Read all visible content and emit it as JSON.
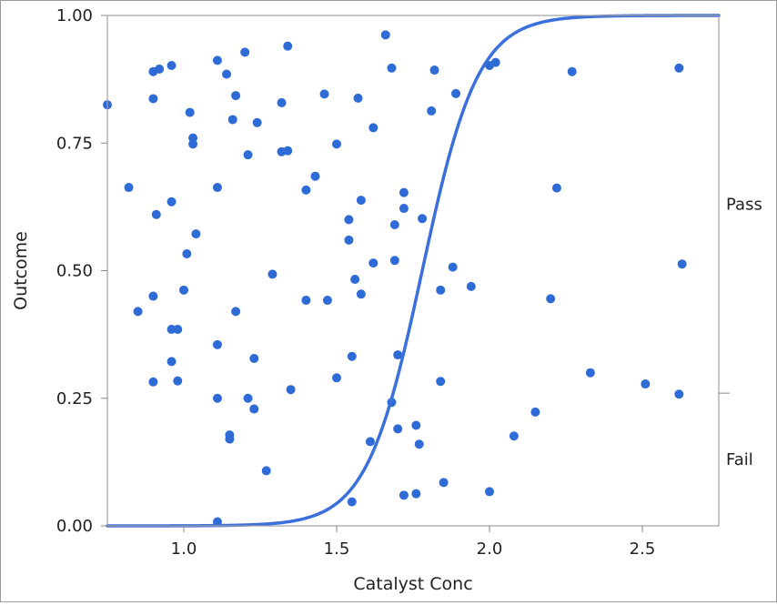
{
  "chart_data": {
    "type": "scatter",
    "title": "",
    "xlabel": "Catalyst Conc",
    "ylabel": "Outcome",
    "xlim": [
      0.75,
      2.75
    ],
    "ylim": [
      0,
      1
    ],
    "x_ticks": [
      {
        "value": 1.0,
        "label": "1.0"
      },
      {
        "value": 1.5,
        "label": "1.5"
      },
      {
        "value": 2.0,
        "label": "2.0"
      },
      {
        "value": 2.5,
        "label": "2.5"
      }
    ],
    "y_ticks": [
      {
        "value": 0.0,
        "label": "0.00"
      },
      {
        "value": 0.25,
        "label": "0.25"
      },
      {
        "value": 0.5,
        "label": "0.50"
      },
      {
        "value": 0.75,
        "label": "0.75"
      },
      {
        "value": 1.0,
        "label": "1.00"
      }
    ],
    "right_axis": {
      "boundary_tick": 0.26,
      "labels": [
        {
          "text": "Pass",
          "y": 0.63
        },
        {
          "text": "Fail",
          "y": 0.13
        }
      ]
    },
    "grid": false,
    "legend": "none",
    "point_color": "#2f6bd6",
    "curve_color": "#3a6fdc",
    "logistic_curve": {
      "midpoint": 1.78,
      "slope": 11.0
    },
    "points": [
      [
        0.75,
        0.825
      ],
      [
        0.9,
        0.89
      ],
      [
        0.92,
        0.895
      ],
      [
        0.96,
        0.902
      ],
      [
        0.9,
        0.837
      ],
      [
        1.02,
        0.81
      ],
      [
        1.11,
        0.912
      ],
      [
        1.14,
        0.885
      ],
      [
        1.2,
        0.928
      ],
      [
        1.34,
        0.94
      ],
      [
        1.17,
        0.843
      ],
      [
        1.16,
        0.796
      ],
      [
        1.24,
        0.79
      ],
      [
        1.32,
        0.829
      ],
      [
        1.46,
        0.846
      ],
      [
        1.57,
        0.838
      ],
      [
        1.62,
        0.78
      ],
      [
        1.66,
        0.962
      ],
      [
        1.68,
        0.897
      ],
      [
        1.82,
        0.893
      ],
      [
        1.81,
        0.813
      ],
      [
        1.89,
        0.847
      ],
      [
        2.0,
        0.902
      ],
      [
        2.02,
        0.908
      ],
      [
        2.27,
        0.89
      ],
      [
        2.62,
        0.897
      ],
      [
        1.03,
        0.76
      ],
      [
        1.03,
        0.748
      ],
      [
        1.21,
        0.727
      ],
      [
        1.32,
        0.733
      ],
      [
        1.34,
        0.735
      ],
      [
        1.5,
        0.748
      ],
      [
        0.82,
        0.663
      ],
      [
        0.96,
        0.635
      ],
      [
        0.91,
        0.61
      ],
      [
        1.11,
        0.663
      ],
      [
        1.43,
        0.685
      ],
      [
        1.4,
        0.658
      ],
      [
        1.04,
        0.572
      ],
      [
        1.01,
        0.533
      ],
      [
        1.58,
        0.638
      ],
      [
        1.72,
        0.653
      ],
      [
        1.72,
        0.622
      ],
      [
        1.69,
        0.59
      ],
      [
        1.78,
        0.602
      ],
      [
        1.54,
        0.6
      ],
      [
        2.22,
        0.662
      ],
      [
        1.0,
        0.462
      ],
      [
        0.9,
        0.45
      ],
      [
        0.85,
        0.42
      ],
      [
        1.17,
        0.42
      ],
      [
        1.29,
        0.493
      ],
      [
        1.4,
        0.442
      ],
      [
        1.47,
        0.442
      ],
      [
        1.54,
        0.56
      ],
      [
        1.56,
        0.483
      ],
      [
        1.58,
        0.454
      ],
      [
        1.62,
        0.515
      ],
      [
        1.69,
        0.52
      ],
      [
        1.84,
        0.462
      ],
      [
        1.88,
        0.507
      ],
      [
        1.94,
        0.469
      ],
      [
        2.2,
        0.445
      ],
      [
        2.63,
        0.513
      ],
      [
        0.96,
        0.385
      ],
      [
        0.98,
        0.385
      ],
      [
        0.96,
        0.322
      ],
      [
        1.11,
        0.355
      ],
      [
        0.9,
        0.282
      ],
      [
        0.98,
        0.284
      ],
      [
        1.11,
        0.25
      ],
      [
        1.21,
        0.25
      ],
      [
        1.23,
        0.328
      ],
      [
        1.23,
        0.229
      ],
      [
        1.35,
        0.267
      ],
      [
        1.5,
        0.29
      ],
      [
        1.55,
        0.332
      ],
      [
        1.7,
        0.335
      ],
      [
        1.84,
        0.283
      ],
      [
        1.68,
        0.242
      ],
      [
        2.33,
        0.3
      ],
      [
        2.51,
        0.278
      ],
      [
        2.62,
        0.258
      ],
      [
        1.15,
        0.178
      ],
      [
        1.15,
        0.17
      ],
      [
        1.27,
        0.108
      ],
      [
        1.61,
        0.165
      ],
      [
        1.7,
        0.19
      ],
      [
        1.76,
        0.197
      ],
      [
        1.77,
        0.16
      ],
      [
        1.72,
        0.06
      ],
      [
        1.76,
        0.063
      ],
      [
        1.85,
        0.085
      ],
      [
        1.55,
        0.047
      ],
      [
        2.0,
        0.067
      ],
      [
        2.08,
        0.176
      ],
      [
        2.15,
        0.223
      ],
      [
        1.11,
        0.008
      ]
    ]
  }
}
